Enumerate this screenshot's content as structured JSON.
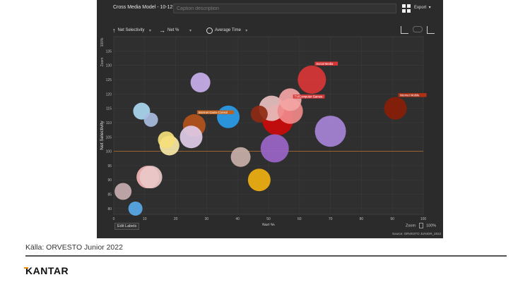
{
  "app": {
    "title": "Cross Media Model - 10-12",
    "caption_placeholder": "Caption description",
    "export_label": "Export",
    "layout_icon": "grid-icon"
  },
  "toolbar": {
    "y_selector": "Net Selectivity",
    "x_selector": "Net %",
    "size_selector": "Average Time"
  },
  "footer": {
    "edit_labels": "Edit Labels",
    "zoom_label": "Zoom",
    "zoom_value": "100%",
    "source": "Source: ORVESTO JUNIOR_2022"
  },
  "page": {
    "kalla": "Källa: ORVESTO Junior 2022",
    "brand": "KANTAR"
  },
  "chart_data": {
    "type": "scatter",
    "xlabel": "Net %",
    "ylabel": "Net Selectivity",
    "y_axis_zoom_label": "Zoom",
    "y_axis_zoom_value": "100%",
    "xlim": [
      0,
      100
    ],
    "ylim": [
      78,
      140
    ],
    "xticks": [
      0,
      10,
      20,
      30,
      40,
      50,
      60,
      70,
      80,
      90,
      100
    ],
    "yticks": [
      80,
      85,
      90,
      95,
      100,
      105,
      110,
      115,
      120,
      125,
      130,
      135
    ],
    "reference_line_y": 100,
    "grid": true,
    "points": [
      {
        "label": "",
        "x": 28,
        "y": 124,
        "size": 7,
        "color": "#c8b0ec",
        "labelColor": "#9b82c9"
      },
      {
        "label": "Social Media",
        "x": 64,
        "y": 125,
        "size": 10,
        "color": "#d93636",
        "labelColor": "#d93636"
      },
      {
        "label": "Internet Mobile",
        "x": 91,
        "y": 115,
        "size": 8,
        "color": "#8a1e08",
        "labelColor": "#b03016"
      },
      {
        "label": "",
        "x": 57,
        "y": 118,
        "size": 8,
        "color": "#f4a5a5",
        "labelColor": "#e88a8a"
      },
      {
        "label": "",
        "x": 51,
        "y": 115,
        "size": 9,
        "color": "#e8c0c0",
        "labelColor": "#d89a9a"
      },
      {
        "label": "",
        "x": 47,
        "y": 113,
        "size": 6,
        "color": "#8e2a14",
        "labelColor": "#a63a20"
      },
      {
        "label": "TV/Computer Games",
        "x": 57,
        "y": 114,
        "size": 9,
        "color": "#f08a8a",
        "labelColor": "#d93b3b"
      },
      {
        "label": "",
        "x": 53,
        "y": 111,
        "size": 11,
        "color": "#cc0a0a",
        "labelColor": "#cc0a0a"
      },
      {
        "label": "",
        "x": 70,
        "y": 107,
        "size": 11,
        "color": "#a784d8",
        "labelColor": "#8c6ac0"
      },
      {
        "label": "",
        "x": 37,
        "y": 112,
        "size": 8,
        "color": "#2a9ce8",
        "labelColor": "#2a8ad0"
      },
      {
        "label": "",
        "x": 9,
        "y": 114,
        "size": 6,
        "color": "#a9d8f0",
        "labelColor": "#7ab0d0"
      },
      {
        "label": "",
        "x": 12,
        "y": 111,
        "size": 5,
        "color": "#a9bde0",
        "labelColor": "#7a90b8"
      },
      {
        "label": "Internet Game Consol",
        "x": 26,
        "y": 109,
        "size": 8,
        "color": "#b5541c",
        "labelColor": "#c0601e"
      },
      {
        "label": "",
        "x": 25,
        "y": 105,
        "size": 8,
        "color": "#e0cce8",
        "labelColor": "#b58ec8"
      },
      {
        "label": "",
        "x": 17,
        "y": 104,
        "size": 6,
        "color": "#f5e07a",
        "labelColor": "#d8c050"
      },
      {
        "label": "",
        "x": 18,
        "y": 102,
        "size": 7,
        "color": "#f8e9a6",
        "labelColor": "#d8c070"
      },
      {
        "label": "",
        "x": 52,
        "y": 101,
        "size": 10,
        "color": "#9a66c8",
        "labelColor": "#8a55c0"
      },
      {
        "label": "",
        "x": 41,
        "y": 98,
        "size": 7,
        "color": "#c8b0a8",
        "labelColor": "#a89088"
      },
      {
        "label": "",
        "x": 47,
        "y": 90,
        "size": 8,
        "color": "#f0b010",
        "labelColor": "#d89a08"
      },
      {
        "label": "",
        "x": 11,
        "y": 91,
        "size": 8,
        "color": "#f5b6b6",
        "labelColor": "#e08e8e"
      },
      {
        "label": "",
        "x": 12,
        "y": 91,
        "size": 8,
        "color": "#ecc8c8",
        "labelColor": "#d0a0a0"
      },
      {
        "label": "",
        "x": 3,
        "y": 86,
        "size": 6,
        "color": "#c8aeb0",
        "labelColor": "#a08888"
      },
      {
        "label": "",
        "x": 7,
        "y": 80,
        "size": 5,
        "color": "#5aaae8",
        "labelColor": "#3a8ad0"
      }
    ]
  }
}
